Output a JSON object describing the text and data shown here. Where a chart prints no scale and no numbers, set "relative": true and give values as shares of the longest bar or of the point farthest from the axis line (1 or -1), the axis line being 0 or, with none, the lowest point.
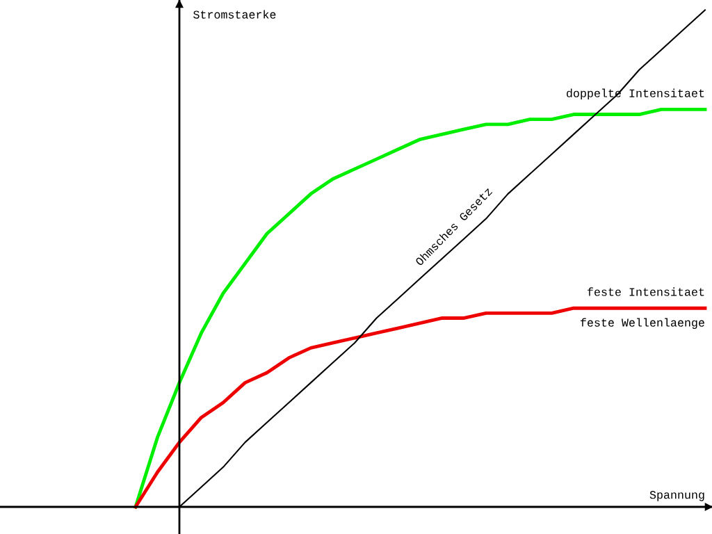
{
  "chart_data": {
    "type": "line",
    "relative": true,
    "xlabel": "Spannung",
    "ylabel": "Stromstaerke",
    "categories": [
      null,
      null,
      null,
      null,
      null,
      null,
      null,
      null,
      null,
      null,
      null,
      null,
      null,
      null,
      null,
      null,
      null,
      null,
      null,
      null,
      null,
      null,
      null,
      null,
      null,
      null,
      null
    ],
    "series": [
      {
        "name": "doppelte Intensitaet",
        "color": "#00ee00",
        "values": [
          0,
          0.14,
          0.25,
          0.35,
          0.43,
          0.49,
          0.55,
          0.59,
          0.63,
          0.66,
          0.68,
          0.7,
          0.72,
          0.74,
          0.75,
          0.76,
          0.77,
          0.77,
          0.78,
          0.78,
          0.79,
          0.79,
          0.79,
          0.79,
          0.8,
          0.8,
          0.8
        ]
      },
      {
        "name": "feste Intensitaet",
        "color": "#ee0000",
        "values": [
          0,
          0.07,
          0.13,
          0.18,
          0.21,
          0.25,
          0.27,
          0.3,
          0.32,
          0.33,
          0.34,
          0.35,
          0.36,
          0.37,
          0.38,
          0.38,
          0.39,
          0.39,
          0.39,
          0.39,
          0.4,
          0.4,
          0.4,
          0.4,
          0.4,
          0.4,
          0.4
        ]
      },
      {
        "name": "Ohmsches Gesetz",
        "color": "#000000",
        "values": [
          null,
          null,
          0,
          0.04,
          0.08,
          0.13,
          0.17,
          0.21,
          0.25,
          0.29,
          0.33,
          0.38,
          0.42,
          0.46,
          0.5,
          0.54,
          0.58,
          0.63,
          0.67,
          0.71,
          0.75,
          0.79,
          0.83,
          0.88,
          0.92,
          0.96,
          1.0
        ]
      }
    ],
    "annotations": [
      "feste Wellenlaenge"
    ],
    "legend": false,
    "grid": false
  }
}
